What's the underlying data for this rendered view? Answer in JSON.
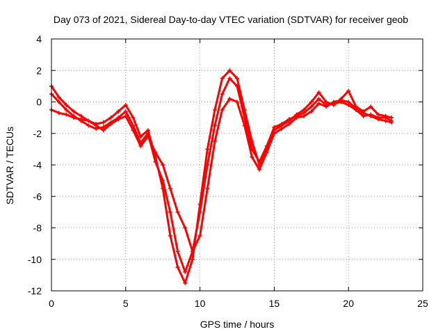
{
  "chart_data": {
    "type": "line",
    "title": "Day 073 of 2021, Sidereal Day-to-day VTEC variation (SDTVAR) for receiver geob",
    "xlabel": "GPS time / hours",
    "ylabel": "SDTVAR / TECUs",
    "xlim": [
      0,
      25
    ],
    "ylim": [
      -12,
      4
    ],
    "xticks": [
      0,
      5,
      10,
      15,
      20,
      25
    ],
    "yticks": [
      -12,
      -10,
      -8,
      -6,
      -4,
      -2,
      0,
      2,
      4
    ],
    "grid": true,
    "marker": "plus",
    "color": "#ff0000",
    "series": [
      {
        "x": [
          0.0,
          0.5,
          1.0,
          1.5,
          2.0,
          2.5,
          3.0,
          3.5,
          4.0,
          4.5,
          5.0,
          5.5,
          6.0,
          6.5,
          7.0,
          7.5,
          8.0,
          8.5,
          9.0,
          9.5,
          10.0,
          10.5,
          11.0,
          11.5,
          12.0,
          12.5,
          13.0,
          13.5,
          14.0,
          14.5,
          15.0,
          15.5,
          16.0,
          16.5,
          17.0,
          17.5,
          18.0,
          18.5,
          19.0,
          19.5,
          20.0,
          20.5,
          21.0,
          21.5,
          22.0,
          22.5,
          22.9
        ],
        "values": [
          1.0,
          0.3,
          -0.2,
          -0.6,
          -0.9,
          -1.2,
          -1.4,
          -1.3,
          -1.0,
          -0.6,
          -0.2,
          -1.0,
          -2.2,
          -1.8,
          -3.5,
          -5.5,
          -8.5,
          -10.5,
          -11.5,
          -10.0,
          -6.5,
          -3.0,
          -0.5,
          1.5,
          2.0,
          1.5,
          -0.5,
          -2.5,
          -4.0,
          -3.0,
          -1.8,
          -1.5,
          -1.2,
          -0.8,
          -0.5,
          0.0,
          0.6,
          0.0,
          -0.2,
          0.2,
          0.7,
          -0.3,
          -0.6,
          -0.3,
          -0.8,
          -0.9,
          -1.0
        ]
      },
      {
        "x": [
          0.0,
          0.5,
          1.0,
          1.5,
          2.0,
          2.5,
          3.0,
          3.5,
          4.0,
          4.5,
          5.0,
          5.5,
          6.0,
          6.5,
          7.0,
          7.5,
          8.0,
          8.5,
          9.0,
          9.5,
          10.0,
          10.5,
          11.0,
          11.5,
          12.0,
          12.5,
          13.0,
          13.5,
          14.0,
          14.5,
          15.0,
          15.5,
          16.0,
          16.5,
          17.0,
          17.5,
          18.0,
          18.5,
          19.0,
          19.5,
          20.0,
          20.5,
          21.0,
          21.5,
          22.0,
          22.5,
          22.9
        ],
        "values": [
          0.5,
          0.0,
          -0.5,
          -0.9,
          -1.2,
          -1.5,
          -1.7,
          -1.6,
          -1.3,
          -1.0,
          -0.6,
          -1.5,
          -2.6,
          -2.0,
          -3.8,
          -5.0,
          -7.0,
          -9.5,
          -10.8,
          -9.5,
          -7.0,
          -4.0,
          -1.5,
          0.5,
          1.5,
          1.0,
          -1.0,
          -3.0,
          -3.8,
          -2.8,
          -1.6,
          -1.4,
          -1.1,
          -0.9,
          -0.7,
          -0.3,
          0.2,
          -0.2,
          -0.1,
          0.0,
          -0.2,
          -0.5,
          -0.9,
          -0.8,
          -1.0,
          -1.0,
          -1.2
        ]
      },
      {
        "x": [
          0.0,
          0.5,
          1.0,
          1.5,
          2.0,
          2.5,
          3.0,
          3.5,
          4.0,
          4.5,
          5.0,
          5.5,
          6.0,
          6.5,
          7.0,
          7.5,
          8.0,
          8.5,
          9.0,
          9.5,
          10.0,
          10.5,
          11.0,
          11.5,
          12.0,
          12.5,
          13.0,
          13.5,
          14.0,
          14.5,
          15.0,
          15.5,
          16.0,
          16.5,
          17.0,
          17.5,
          18.0,
          18.5,
          19.0,
          19.5,
          20.0,
          20.5,
          21.0,
          21.5,
          22.0,
          22.5,
          22.9
        ],
        "values": [
          -0.5,
          -0.7,
          -0.8,
          -1.0,
          -1.1,
          -1.2,
          -1.5,
          -1.8,
          -1.4,
          -1.1,
          -0.9,
          -1.8,
          -2.8,
          -2.2,
          -3.2,
          -4.0,
          -5.5,
          -7.0,
          -8.0,
          -9.5,
          -8.5,
          -5.5,
          -2.5,
          -0.5,
          0.2,
          0.0,
          -1.5,
          -3.5,
          -4.3,
          -3.2,
          -2.0,
          -1.7,
          -1.4,
          -1.0,
          -0.9,
          -0.6,
          -0.1,
          -0.3,
          0.0,
          0.1,
          0.0,
          -0.4,
          -0.7,
          -0.9,
          -1.1,
          -1.2,
          -1.3
        ]
      }
    ]
  }
}
